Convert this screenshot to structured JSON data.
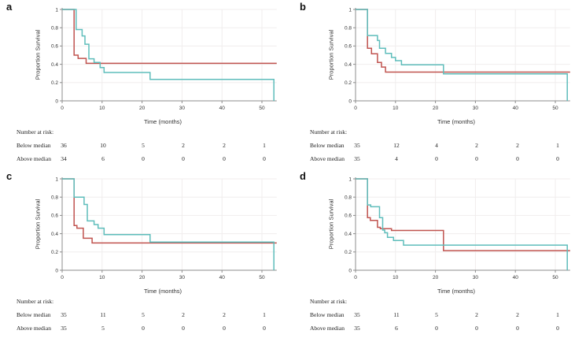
{
  "figure": {
    "background": "#ffffff"
  },
  "colors": {
    "red_series": "#c0534f",
    "teal_series": "#5ebdbb",
    "axis": "#8c8c8c",
    "grid": "#f0eded",
    "text": "#333333"
  },
  "chart_data": [
    {
      "panel": "a",
      "type": "line",
      "subtype": "kaplan-meier-step",
      "xlabel": "Time (months)",
      "ylabel": "Proportion Survival",
      "xlim": [
        0,
        53.7
      ],
      "ylim": [
        0,
        1
      ],
      "xticks": [
        0,
        10,
        20,
        30,
        40,
        50
      ],
      "yticks": [
        0,
        0.2,
        0.4,
        0.6,
        0.8,
        1
      ],
      "grid": true,
      "legend": "none",
      "series": [
        {
          "name": "red-curve",
          "color": "#c0534f",
          "points": [
            [
              0,
              1
            ],
            [
              3,
              1
            ],
            [
              3,
              0.5
            ],
            [
              4,
              0.5
            ],
            [
              4,
              0.465
            ],
            [
              6,
              0.465
            ],
            [
              6,
              0.41
            ],
            [
              53.7,
              0.41
            ]
          ]
        },
        {
          "name": "teal-curve",
          "color": "#5ebdbb",
          "points": [
            [
              0,
              1
            ],
            [
              3.5,
              1
            ],
            [
              3.5,
              0.78
            ],
            [
              5,
              0.78
            ],
            [
              5,
              0.71
            ],
            [
              5.7,
              0.71
            ],
            [
              5.7,
              0.62
            ],
            [
              6.7,
              0.62
            ],
            [
              6.7,
              0.46
            ],
            [
              8,
              0.46
            ],
            [
              8,
              0.42
            ],
            [
              9.5,
              0.42
            ],
            [
              9.5,
              0.365
            ],
            [
              10.5,
              0.365
            ],
            [
              10.5,
              0.31
            ],
            [
              22,
              0.31
            ],
            [
              22,
              0.235
            ],
            [
              53,
              0.235
            ],
            [
              53,
              0
            ]
          ]
        }
      ],
      "number_at_risk": {
        "heading": "Number at risk:",
        "rows": [
          {
            "label": "Below median",
            "values": [
              "36",
              "10",
              "5",
              "2",
              "2",
              "1"
            ]
          },
          {
            "label": "Above median",
            "values": [
              "34",
              "6",
              "0",
              "0",
              "0",
              "0"
            ]
          }
        ]
      }
    },
    {
      "panel": "b",
      "type": "line",
      "subtype": "kaplan-meier-step",
      "xlabel": "Time (months)",
      "ylabel": "Proportion Survival",
      "xlim": [
        0,
        53.7
      ],
      "ylim": [
        0,
        1
      ],
      "xticks": [
        0,
        10,
        20,
        30,
        40,
        50
      ],
      "yticks": [
        0,
        0.2,
        0.4,
        0.6,
        0.8,
        1
      ],
      "grid": true,
      "legend": "none",
      "series": [
        {
          "name": "red-curve",
          "color": "#c0534f",
          "points": [
            [
              0,
              1
            ],
            [
              3,
              1
            ],
            [
              3,
              0.575
            ],
            [
              4,
              0.575
            ],
            [
              4,
              0.515
            ],
            [
              5.5,
              0.515
            ],
            [
              5.5,
              0.42
            ],
            [
              6.5,
              0.42
            ],
            [
              6.5,
              0.37
            ],
            [
              7.5,
              0.37
            ],
            [
              7.5,
              0.315
            ],
            [
              53.7,
              0.315
            ]
          ]
        },
        {
          "name": "teal-curve",
          "color": "#5ebdbb",
          "points": [
            [
              0,
              1
            ],
            [
              3,
              1
            ],
            [
              3,
              0.715
            ],
            [
              5.5,
              0.715
            ],
            [
              5.5,
              0.66
            ],
            [
              6,
              0.66
            ],
            [
              6,
              0.575
            ],
            [
              7.5,
              0.575
            ],
            [
              7.5,
              0.52
            ],
            [
              9,
              0.52
            ],
            [
              9,
              0.475
            ],
            [
              10,
              0.475
            ],
            [
              10,
              0.44
            ],
            [
              11.5,
              0.44
            ],
            [
              11.5,
              0.395
            ],
            [
              22,
              0.395
            ],
            [
              22,
              0.295
            ],
            [
              53,
              0.295
            ],
            [
              53,
              0
            ]
          ]
        }
      ],
      "number_at_risk": {
        "heading": "Number at risk:",
        "rows": [
          {
            "label": "Below median",
            "values": [
              "35",
              "12",
              "4",
              "2",
              "2",
              "1"
            ]
          },
          {
            "label": "Above median",
            "values": [
              "35",
              "4",
              "0",
              "0",
              "0",
              "0"
            ]
          }
        ]
      }
    },
    {
      "panel": "c",
      "type": "line",
      "subtype": "kaplan-meier-step",
      "xlabel": "Time (months)",
      "ylabel": "Proportion Survival",
      "xlim": [
        0,
        53.7
      ],
      "ylim": [
        0,
        1
      ],
      "xticks": [
        0,
        10,
        20,
        30,
        40,
        50
      ],
      "yticks": [
        0,
        0.2,
        0.4,
        0.6,
        0.8,
        1
      ],
      "grid": true,
      "legend": "none",
      "series": [
        {
          "name": "red-curve",
          "color": "#c0534f",
          "points": [
            [
              0,
              1
            ],
            [
              3,
              1
            ],
            [
              3,
              0.49
            ],
            [
              3.7,
              0.49
            ],
            [
              3.7,
              0.46
            ],
            [
              5.3,
              0.46
            ],
            [
              5.3,
              0.35
            ],
            [
              7.5,
              0.35
            ],
            [
              7.5,
              0.298
            ],
            [
              53.7,
              0.298
            ]
          ]
        },
        {
          "name": "teal-curve",
          "color": "#5ebdbb",
          "points": [
            [
              0,
              1
            ],
            [
              3,
              1
            ],
            [
              3,
              0.8
            ],
            [
              5.5,
              0.8
            ],
            [
              5.5,
              0.72
            ],
            [
              6.3,
              0.72
            ],
            [
              6.3,
              0.54
            ],
            [
              8,
              0.54
            ],
            [
              8,
              0.5
            ],
            [
              9,
              0.5
            ],
            [
              9,
              0.46
            ],
            [
              10.5,
              0.46
            ],
            [
              10.5,
              0.39
            ],
            [
              22,
              0.39
            ],
            [
              22,
              0.308
            ],
            [
              53,
              0.308
            ],
            [
              53,
              0
            ]
          ]
        }
      ],
      "number_at_risk": {
        "heading": "Number at risk:",
        "rows": [
          {
            "label": "Below median",
            "values": [
              "35",
              "11",
              "5",
              "2",
              "2",
              "1"
            ]
          },
          {
            "label": "Above median",
            "values": [
              "35",
              "5",
              "0",
              "0",
              "0",
              "0"
            ]
          }
        ]
      }
    },
    {
      "panel": "d",
      "type": "line",
      "subtype": "kaplan-meier-step",
      "xlabel": "Time (months)",
      "ylabel": "Proportion Survival",
      "xlim": [
        0,
        53.7
      ],
      "ylim": [
        0,
        1
      ],
      "xticks": [
        0,
        10,
        20,
        30,
        40,
        50
      ],
      "yticks": [
        0,
        0.2,
        0.4,
        0.6,
        0.8,
        1
      ],
      "grid": true,
      "legend": "none",
      "series": [
        {
          "name": "red-curve",
          "color": "#c0534f",
          "points": [
            [
              0,
              1
            ],
            [
              3,
              1
            ],
            [
              3,
              0.575
            ],
            [
              3.7,
              0.575
            ],
            [
              3.7,
              0.545
            ],
            [
              5.5,
              0.545
            ],
            [
              5.5,
              0.47
            ],
            [
              6.2,
              0.47
            ],
            [
              6.2,
              0.455
            ],
            [
              9,
              0.455
            ],
            [
              9,
              0.435
            ],
            [
              22,
              0.435
            ],
            [
              22,
              0.215
            ],
            [
              53.7,
              0.215
            ]
          ]
        },
        {
          "name": "teal-curve",
          "color": "#5ebdbb",
          "points": [
            [
              0,
              1
            ],
            [
              3,
              1
            ],
            [
              3,
              0.715
            ],
            [
              3.8,
              0.715
            ],
            [
              3.8,
              0.695
            ],
            [
              6,
              0.695
            ],
            [
              6,
              0.575
            ],
            [
              6.8,
              0.575
            ],
            [
              6.8,
              0.44
            ],
            [
              7.3,
              0.44
            ],
            [
              7.3,
              0.41
            ],
            [
              8,
              0.41
            ],
            [
              8,
              0.36
            ],
            [
              9.5,
              0.36
            ],
            [
              9.5,
              0.325
            ],
            [
              12,
              0.325
            ],
            [
              12,
              0.275
            ],
            [
              53,
              0.275
            ],
            [
              53,
              0
            ]
          ]
        }
      ],
      "number_at_risk": {
        "heading": "Number at risk:",
        "rows": [
          {
            "label": "Below median",
            "values": [
              "35",
              "11",
              "5",
              "2",
              "2",
              "1"
            ]
          },
          {
            "label": "Above median",
            "values": [
              "35",
              "6",
              "0",
              "0",
              "0",
              "0"
            ]
          }
        ]
      }
    }
  ]
}
